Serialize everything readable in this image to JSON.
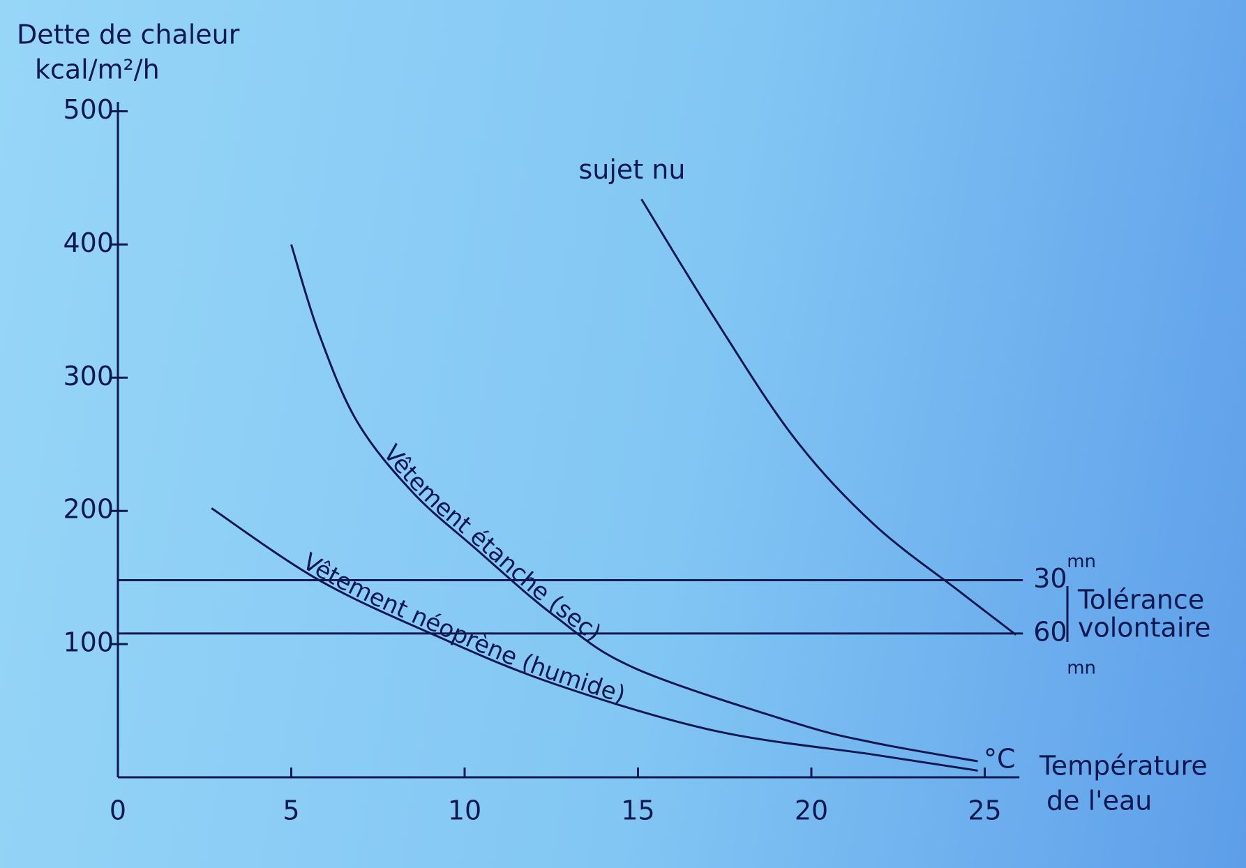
{
  "chart_data": {
    "type": "line",
    "y_label": [
      "Dette de chaleur",
      "kcal/m²/h"
    ],
    "x_label": [
      "Température",
      "de l'eau"
    ],
    "x_unit": "°C",
    "xlim": [
      0,
      26
    ],
    "ylim": [
      0,
      507
    ],
    "xticks": [
      0,
      5,
      10,
      15,
      20,
      25
    ],
    "yticks": [
      100,
      200,
      300,
      400,
      500
    ],
    "color": "#0c1850",
    "series": [
      {
        "name": "sujet nu",
        "color": "#0c1850",
        "x": [
          15.1,
          17.2,
          19.5,
          21.8,
          24.3,
          25.9
        ],
        "values": [
          434,
          345,
          255,
          190,
          139,
          107
        ]
      },
      {
        "name": "Vêtement étanche (sec)",
        "color": "#0c1850",
        "x": [
          5.0,
          5.8,
          6.9,
          8.5,
          10.3,
          12.6,
          14.9,
          19.5,
          21.8,
          24.8
        ],
        "values": [
          400,
          333,
          267,
          214,
          172,
          121,
          82,
          41,
          26,
          12
        ]
      },
      {
        "name": "Vêtement néoprène (humide)",
        "color": "#0c1850",
        "x": [
          2.7,
          5.8,
          9.2,
          12.6,
          17.2,
          21.8,
          24.8
        ],
        "values": [
          202,
          148,
          106,
          70,
          35,
          17,
          5
        ]
      }
    ],
    "hlines": [
      {
        "value": 148,
        "label": "30",
        "unit": "mn"
      },
      {
        "value": 108,
        "label": "60",
        "unit": "mn"
      }
    ],
    "hlines_label": [
      "Tolérance",
      "volontaire"
    ]
  }
}
